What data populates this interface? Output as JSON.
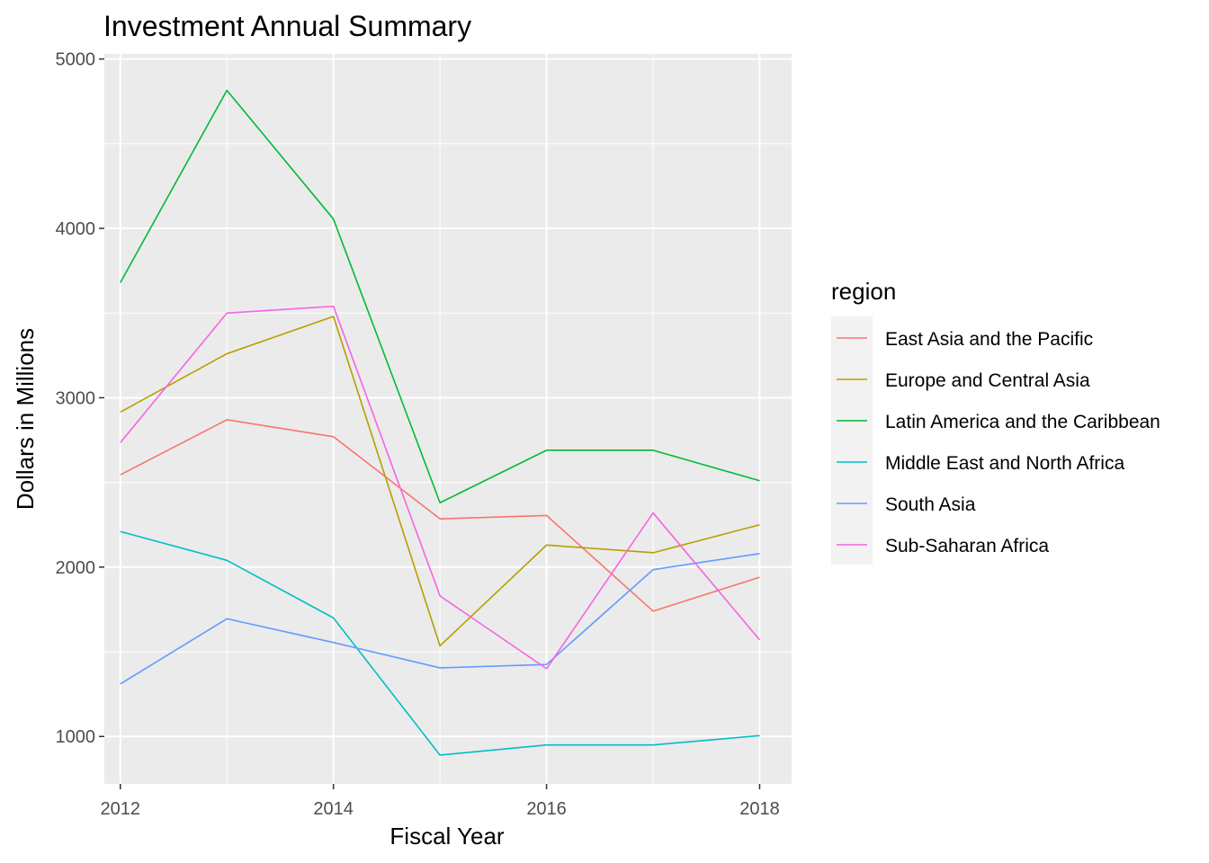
{
  "chart_data": {
    "type": "line",
    "title": "Investment Annual Summary",
    "xlabel": "Fiscal Year",
    "ylabel": "Dollars in Millions",
    "x": [
      2012,
      2013,
      2014,
      2015,
      2016,
      2017,
      2018
    ],
    "xlim": [
      2011.85,
      2018.3
    ],
    "ylim": [
      720,
      5030
    ],
    "x_ticks": [
      "2012",
      "2014",
      "2016",
      "2018"
    ],
    "y_ticks": [
      "1000",
      "2000",
      "3000",
      "4000",
      "5000"
    ],
    "grid": true,
    "legend_title": "region",
    "legend_position": "right",
    "series": [
      {
        "name": "East Asia and the Pacific",
        "color": "#F8766D",
        "values": [
          2545,
          2870,
          2770,
          2285,
          2305,
          1740,
          1940
        ]
      },
      {
        "name": "Europe and Central Asia",
        "color": "#B79F00",
        "values": [
          2915,
          3260,
          3480,
          1535,
          2130,
          2085,
          2250
        ]
      },
      {
        "name": "Latin America and the Caribbean",
        "color": "#00BA38",
        "values": [
          3680,
          4815,
          4055,
          2380,
          2690,
          2690,
          2510
        ]
      },
      {
        "name": "Middle East and North Africa",
        "color": "#00BFC4",
        "values": [
          2210,
          2040,
          1700,
          890,
          950,
          950,
          1005
        ]
      },
      {
        "name": "South Asia",
        "color": "#619CFF",
        "values": [
          1310,
          1695,
          1555,
          1405,
          1425,
          1985,
          2080
        ]
      },
      {
        "name": "Sub-Saharan Africa",
        "color": "#F564E3",
        "values": [
          2735,
          3500,
          3540,
          1830,
          1400,
          2320,
          1570
        ]
      }
    ]
  }
}
